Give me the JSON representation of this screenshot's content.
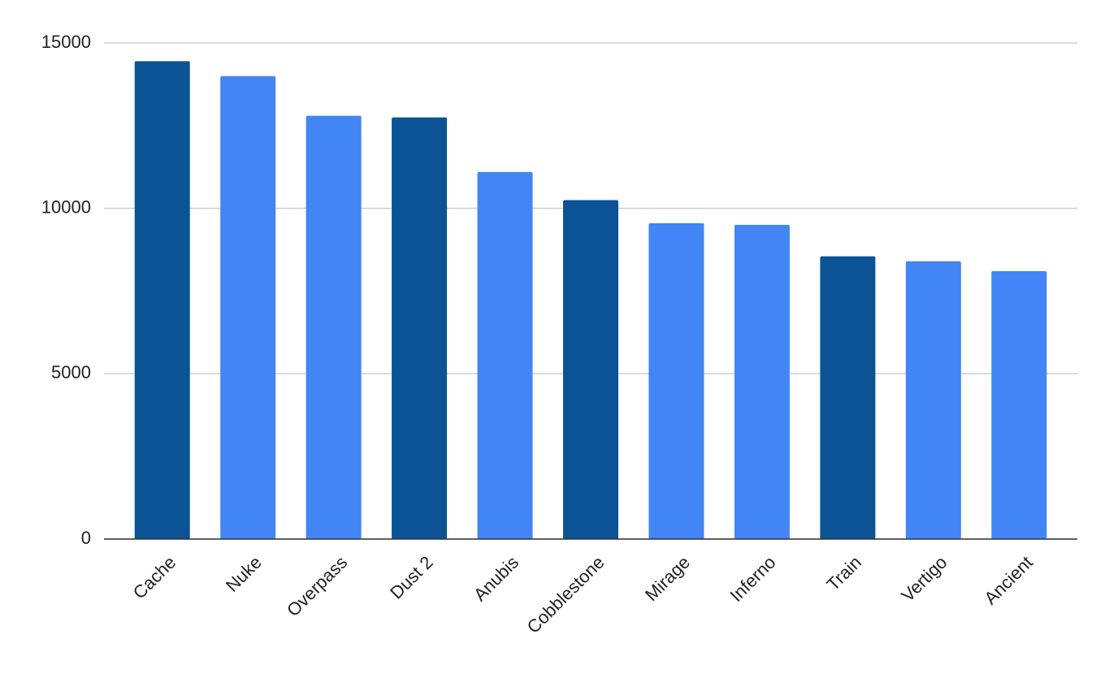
{
  "chart_data": {
    "type": "bar",
    "categories": [
      "Cache",
      "Nuke",
      "Overpass",
      "Dust 2",
      "Anubis",
      "Cobblestone",
      "Mirage",
      "Inferno",
      "Train",
      "Vertigo",
      "Ancient"
    ],
    "values": [
      14450,
      14000,
      12800,
      12750,
      11100,
      10250,
      9550,
      9500,
      8550,
      8400,
      8100
    ],
    "colors": [
      "#0b5394",
      "#4285f4",
      "#4285f4",
      "#0b5394",
      "#4285f4",
      "#0b5394",
      "#4285f4",
      "#4285f4",
      "#0b5394",
      "#4285f4",
      "#4285f4"
    ],
    "ylim": [
      0,
      15000
    ],
    "yticks": [
      0,
      5000,
      10000,
      15000
    ],
    "grid": true
  }
}
